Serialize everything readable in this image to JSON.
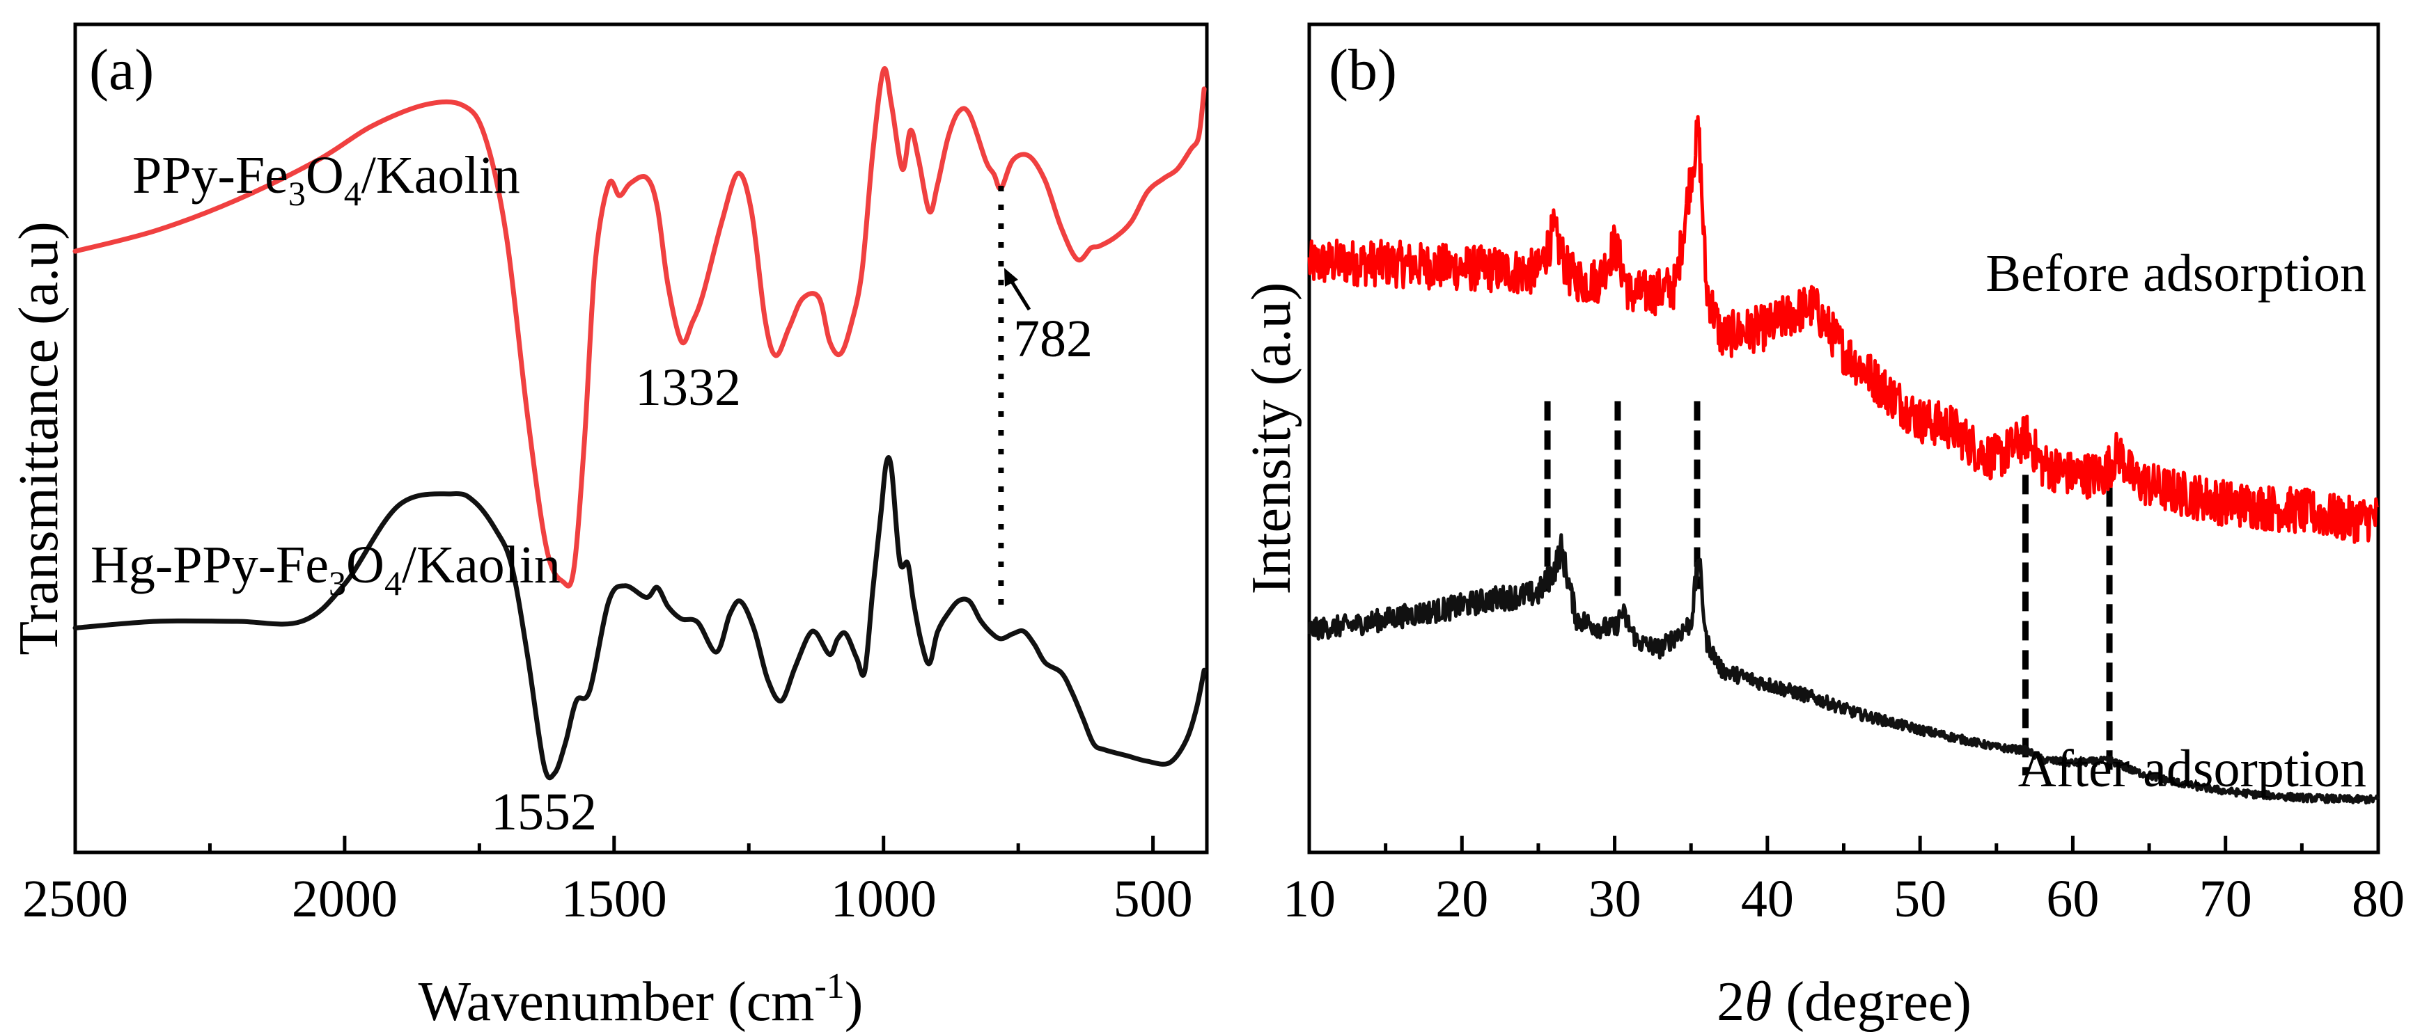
{
  "chart_data": [
    {
      "type": "line",
      "panel": "(a)",
      "xlabel": "Wavenumber (cm",
      "xlabel_sup": "-1",
      "xlabel_end": ")",
      "ylabel": "Transmittance (a.u)",
      "xlim": [
        2500,
        400
      ],
      "x_reversed": true,
      "ylim": [
        0,
        100
      ],
      "yticks_visible": false,
      "xticks": [
        2500,
        2000,
        1500,
        1000,
        500
      ],
      "x_minor_ticks": [
        2250,
        1750,
        1250,
        750
      ],
      "series": [
        {
          "name": "PPy-Fe3O4/Kaolin",
          "label_parts": [
            "PPy-Fe",
            "3",
            "O",
            "4",
            "/Kaolin"
          ],
          "color": "#f04040",
          "x": [
            2500,
            2350,
            2200,
            2050,
            1950,
            1850,
            1780,
            1740,
            1700,
            1660,
            1625,
            1595,
            1575,
            1555,
            1535,
            1510,
            1490,
            1470,
            1440,
            1420,
            1400,
            1375,
            1355,
            1335,
            1300,
            1270,
            1245,
            1220,
            1200,
            1175,
            1150,
            1120,
            1100,
            1080,
            1060,
            1040,
            1020,
            1000,
            985,
            965,
            950,
            935,
            915,
            900,
            880,
            860,
            840,
            810,
            795,
            782,
            760,
            730,
            700,
            670,
            640,
            615,
            600,
            570,
            540,
            510,
            480,
            455,
            430,
            415,
            405
          ],
          "y": [
            72.6,
            75.1,
            78.8,
            83.6,
            87.7,
            90.3,
            90.2,
            86.5,
            74.5,
            52.4,
            36.6,
            32.7,
            34.1,
            49.8,
            71.2,
            80.7,
            79.3,
            80.8,
            81.5,
            78.0,
            68.5,
            61.7,
            64.0,
            67.4,
            76.2,
            82.0,
            77.4,
            64.4,
            60.0,
            63.4,
            66.9,
            67.0,
            61.7,
            60.2,
            63.8,
            70.2,
            84.5,
            94.5,
            90.2,
            82.5,
            87.2,
            83.7,
            77.4,
            80.6,
            86.4,
            89.5,
            89.1,
            83.5,
            81.9,
            80.2,
            83.6,
            84.1,
            81.1,
            75.4,
            71.6,
            73.0,
            73.2,
            74.3,
            76.2,
            79.8,
            81.4,
            82.5,
            84.9,
            86.5,
            92.2
          ]
        },
        {
          "name": "Hg-PPy-Fe3O4/Kaolin",
          "label_parts": [
            "Hg-PPy-Fe",
            "3",
            "O",
            "4",
            "/Kaolin"
          ],
          "color": "#111111",
          "x": [
            2500,
            2350,
            2200,
            2080,
            2000,
            1900,
            1800,
            1760,
            1720,
            1690,
            1660,
            1630,
            1610,
            1590,
            1570,
            1545,
            1510,
            1480,
            1440,
            1420,
            1400,
            1375,
            1345,
            1310,
            1285,
            1265,
            1240,
            1215,
            1190,
            1165,
            1140,
            1125,
            1100,
            1085,
            1070,
            1050,
            1035,
            1020,
            1005,
            995,
            985,
            970,
            955,
            945,
            930,
            915,
            900,
            880,
            860,
            840,
            820,
            800,
            782,
            760,
            740,
            720,
            700,
            670,
            650,
            630,
            610,
            590,
            550,
            510,
            470,
            440,
            420,
            405
          ],
          "y": [
            27.1,
            27.9,
            27.9,
            27.9,
            32.4,
            41.9,
            43.3,
            42.4,
            39.0,
            34.6,
            23.5,
            10.5,
            9.6,
            13.3,
            18.3,
            19.6,
            30.3,
            32.2,
            30.8,
            32.0,
            29.7,
            28.2,
            27.8,
            24.2,
            28.8,
            30.3,
            26.9,
            20.9,
            18.3,
            22.2,
            26.1,
            26.5,
            23.9,
            25.8,
            26.4,
            23.5,
            21.8,
            31.6,
            40.8,
            47.0,
            46.2,
            35.2,
            34.9,
            30.5,
            25.4,
            22.8,
            26.6,
            28.9,
            30.4,
            30.3,
            28.0,
            26.5,
            25.8,
            26.4,
            26.7,
            25.1,
            22.9,
            21.7,
            19.3,
            16.2,
            13.1,
            12.4,
            11.7,
            11.0,
            10.8,
            13.3,
            17.2,
            22.0
          ]
        }
      ],
      "annotations": [
        {
          "text": "1332",
          "x": 1335
        },
        {
          "text": "782",
          "x": 782
        },
        {
          "text": "1552",
          "x": 1600
        }
      ],
      "reference_line": {
        "x": 782,
        "style": "dotted"
      }
    },
    {
      "type": "line",
      "panel": "(b)",
      "xlabel_prefix": "2",
      "xlabel_symbol": "θ",
      "xlabel": " (degree)",
      "ylabel": "Intensity (a.u)",
      "xlim": [
        10,
        80
      ],
      "ylim": [
        0,
        100
      ],
      "yticks_visible": false,
      "xticks": [
        10,
        20,
        30,
        40,
        50,
        60,
        70,
        80
      ],
      "x_minor_ticks": [
        15,
        25,
        35,
        45,
        55,
        65,
        75
      ],
      "series": [
        {
          "name": "Before adsorption",
          "color": "#ff0000",
          "style": "noisy",
          "noise": 2.8,
          "x": [
            10,
            12,
            15,
            18,
            20,
            22,
            24,
            25,
            26,
            27,
            28,
            29,
            30,
            31,
            32,
            33,
            34,
            35,
            35.5,
            36,
            37,
            38,
            40,
            42,
            43,
            45,
            48,
            50,
            52,
            54,
            55,
            56,
            57,
            58,
            60,
            62,
            63,
            64,
            66,
            68,
            70,
            72,
            75,
            78,
            80
          ],
          "y": [
            71.0,
            71.3,
            71.1,
            70.8,
            70.6,
            70.4,
            70.1,
            70.1,
            74.9,
            69.9,
            68.9,
            69.2,
            73.4,
            67.4,
            67.6,
            67.8,
            68.4,
            82.0,
            87.2,
            68.2,
            62.2,
            62.8,
            63.4,
            65.4,
            66.0,
            60.6,
            55.4,
            52.2,
            51.4,
            48.2,
            47.6,
            48.8,
            50.2,
            46.8,
            45.6,
            45.6,
            48.4,
            45.0,
            43.8,
            43.0,
            42.2,
            41.8,
            41.2,
            40.2,
            40.4
          ]
        },
        {
          "name": "After adsorption",
          "color": "#111111",
          "style": "noisy",
          "noise": 1.3,
          "x": [
            10,
            13,
            16,
            19,
            22,
            24,
            25,
            26,
            26.5,
            27.5,
            29,
            30,
            30.5,
            31.5,
            33,
            35,
            35.5,
            36,
            37,
            40,
            43,
            46,
            50,
            55,
            57,
            58,
            60,
            62.5,
            64,
            66,
            68,
            70,
            72,
            75,
            78,
            80
          ],
          "y": [
            26.9,
            27.5,
            28.5,
            29.4,
            30.6,
            31.0,
            31.3,
            33.9,
            36.7,
            28.2,
            27.2,
            27.0,
            29.0,
            25.4,
            24.6,
            27.7,
            35.7,
            25.6,
            22.0,
            20.3,
            18.7,
            16.7,
            14.8,
            12.7,
            12.3,
            11.2,
            10.8,
            11.1,
            9.8,
            8.8,
            8.0,
            7.4,
            7.0,
            6.6,
            6.4,
            6.4
          ]
        }
      ],
      "reference_lines": [
        {
          "x": 25.6,
          "y_top": 54.5,
          "y_bottom": 31.5
        },
        {
          "x": 30.2,
          "y_top": 54.5,
          "y_bottom": 30.2
        },
        {
          "x": 35.4,
          "y_top": 54.5,
          "y_bottom": 31.8
        },
        {
          "x": 56.9,
          "y_top": 45.6,
          "y_bottom": 9.3
        },
        {
          "x": 62.4,
          "y_top": 44.1,
          "y_bottom": 9.3
        }
      ]
    }
  ]
}
